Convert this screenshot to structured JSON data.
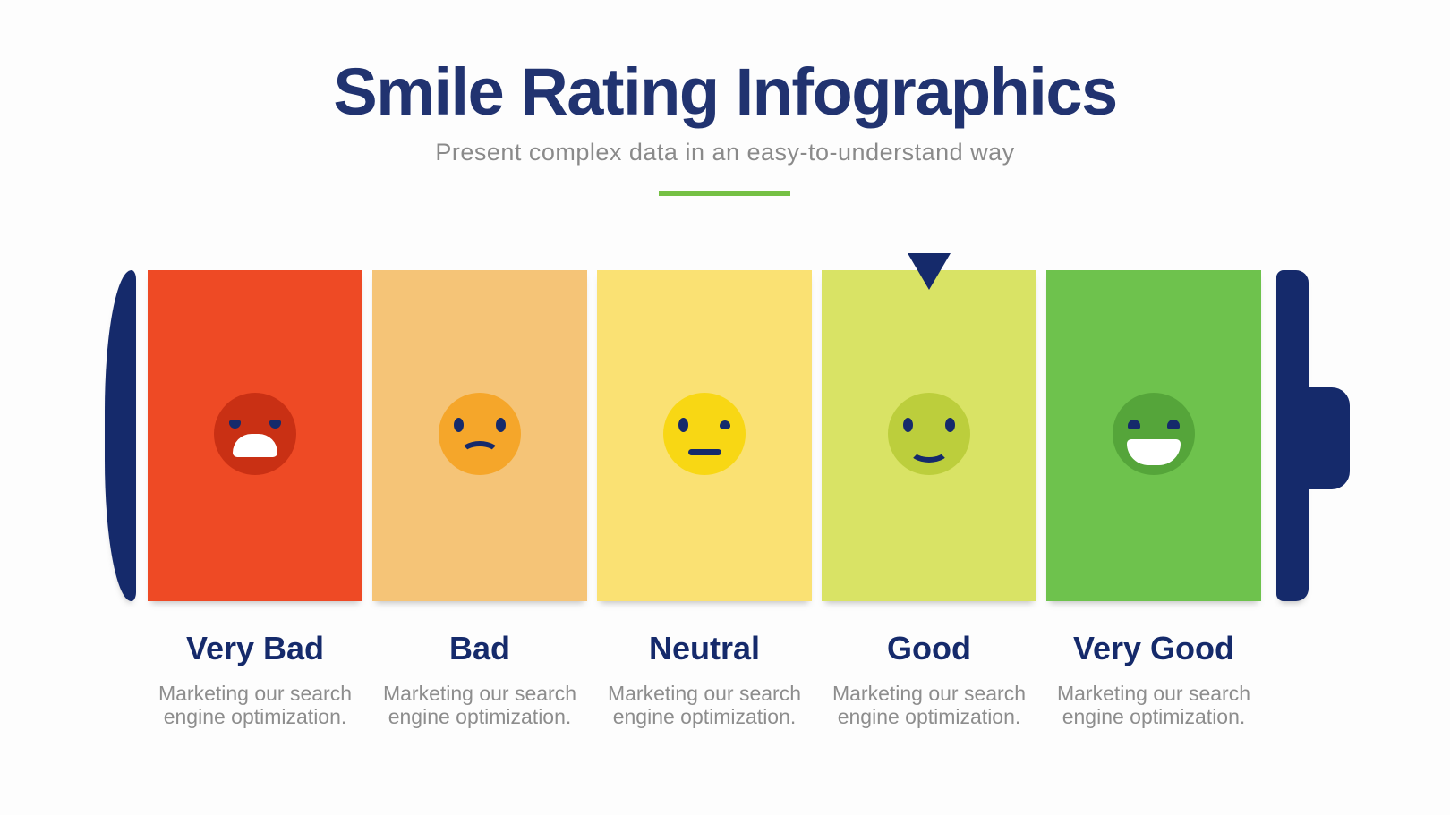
{
  "colors": {
    "background": "#fdfdfd",
    "navy": "#152a6b",
    "title": "#213370",
    "subtitle": "#8a8a8a",
    "description": "#8d8d8d",
    "divider": "#75c044",
    "mouth_white": "#ffffff"
  },
  "header": {
    "title": "Smile Rating Infographics",
    "subtitle": "Present complex data in an easy-to-understand way"
  },
  "battery": {
    "selected_index": 3
  },
  "ratings": [
    {
      "label": "Very Bad",
      "description": "Marketing our search engine optimization.",
      "expression": "very-bad",
      "panel_color": "#ee4a25",
      "face_color": "#c93014"
    },
    {
      "label": "Bad",
      "description": "Marketing our search engine optimization.",
      "expression": "bad",
      "panel_color": "#f5c477",
      "face_color": "#f5a62a"
    },
    {
      "label": "Neutral",
      "description": "Marketing our search engine optimization.",
      "expression": "neutral",
      "panel_color": "#fae173",
      "face_color": "#f8d714"
    },
    {
      "label": "Good",
      "description": "Marketing our search engine optimization.",
      "expression": "good",
      "panel_color": "#d9e365",
      "face_color": "#bcce3c"
    },
    {
      "label": "Very Good",
      "description": "Marketing our search engine optimization.",
      "expression": "very-good",
      "panel_color": "#6ec24d",
      "face_color": "#55a53a"
    }
  ]
}
